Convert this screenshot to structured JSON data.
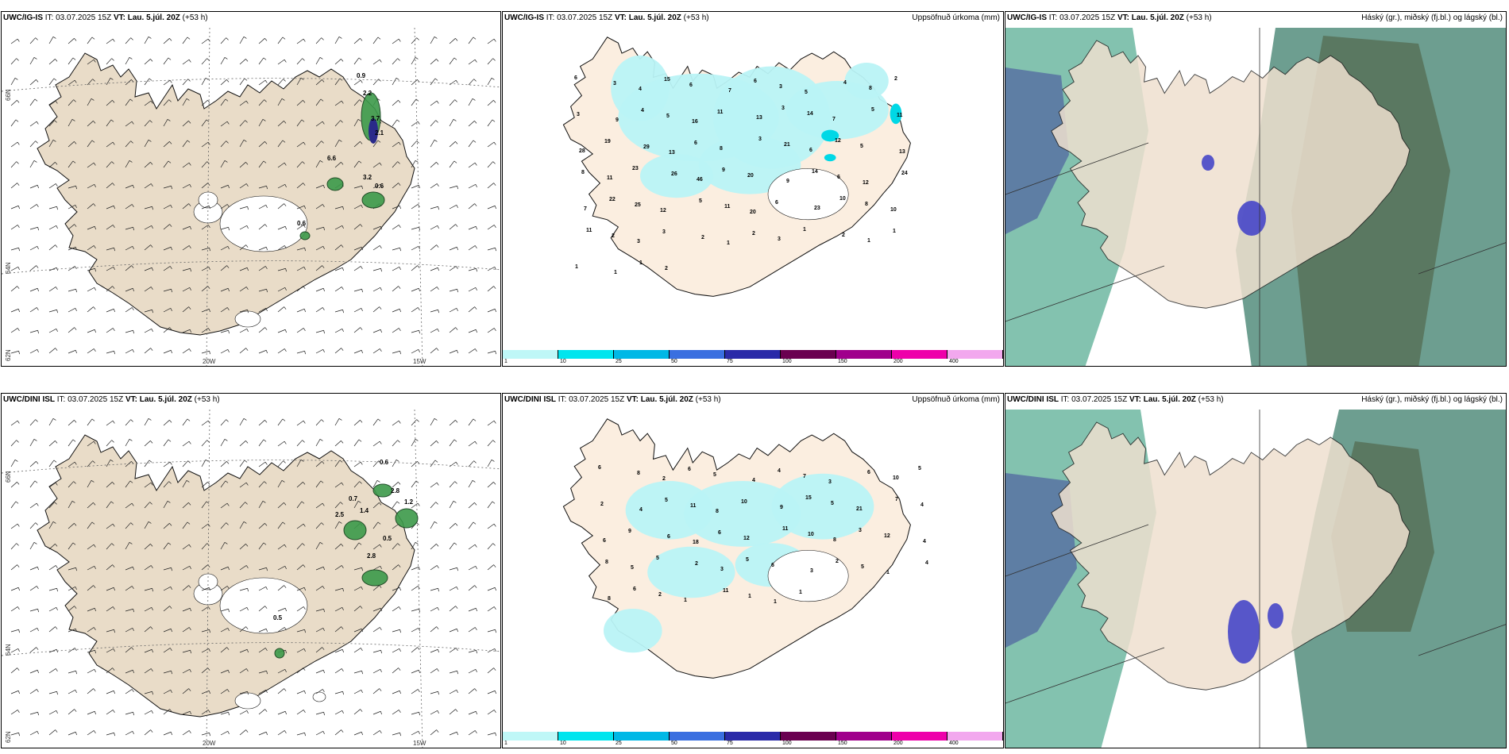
{
  "panels": [
    {
      "model": "UWC/IG-IS",
      "it_label": "IT:",
      "it_value": "03.07.2025 15Z",
      "vt_label": "VT:",
      "vt_value": "Lau. 5.júl. 20Z",
      "lead": "(+53 h)",
      "right_title": "",
      "type": "wind"
    },
    {
      "model": "UWC/IG-IS",
      "it_label": "IT:",
      "it_value": "03.07.2025 15Z",
      "vt_label": "VT:",
      "vt_value": "Lau. 5.júl. 20Z",
      "lead": "(+53 h)",
      "right_title": "Uppsöfnuð úrkoma (mm)",
      "type": "precip"
    },
    {
      "model": "UWC/IG-IS",
      "it_label": "IT:",
      "it_value": "03.07.2025 15Z",
      "vt_label": "VT:",
      "vt_value": "Lau. 5.júl. 20Z",
      "lead": "(+53 h)",
      "right_title": "Háský (gr.), miðský (fj.bl.) og lágský (bl.)",
      "type": "cloud"
    },
    {
      "model": "UWC/DINI ISL",
      "it_label": "IT:",
      "it_value": "03.07.2025 15Z",
      "vt_label": "VT:",
      "vt_value": "Lau. 5.júl. 20Z",
      "lead": "(+53 h)",
      "right_title": "",
      "type": "wind"
    },
    {
      "model": "UWC/DINI ISL",
      "it_label": "IT:",
      "it_value": "03.07.2025 15Z",
      "vt_label": "VT:",
      "vt_value": "Lau. 5.júl. 20Z",
      "lead": "(+53 h)",
      "right_title": "Uppsöfnuð úrkoma (mm)",
      "type": "precip"
    },
    {
      "model": "UWC/DINI ISL",
      "it_label": "IT:",
      "it_value": "03.07.2025 15Z",
      "vt_label": "VT:",
      "vt_value": "Lau. 5.júl. 20Z",
      "lead": "(+53 h)",
      "right_title": "Háský (gr.), miðský (fj.bl.) og lágský (bl.)",
      "type": "cloud"
    }
  ],
  "axis": {
    "lon1": "20W",
    "lon2": "15W",
    "lat66": "66N",
    "lat64": "64N",
    "lat62": "62N"
  },
  "colorbar": {
    "ticks": [
      "1",
      "10",
      "25",
      "50",
      "75",
      "100",
      "150",
      "200",
      "400"
    ],
    "colors": [
      "#bff7f7",
      "#00e5ee",
      "#00b8e6",
      "#3a6fe0",
      "#2a2aa8",
      "#6a0050",
      "#a0008c",
      "#ee00aa",
      "#f2a8ee"
    ]
  },
  "wind_maxima": {
    "top": [
      "0.9",
      "2.2",
      "3.7",
      "2.1",
      "6.6",
      "3.2",
      "0.6",
      "0.6"
    ],
    "bottom": [
      "0.6",
      "0.7",
      "1.4",
      "2.5",
      "2.8",
      "1.2",
      "0.5",
      "2.8",
      "0.5"
    ]
  },
  "precip_numbers": {
    "top": [
      "6",
      "3",
      "4",
      "15",
      "6",
      "7",
      "6",
      "3",
      "5",
      "4",
      "8",
      "2",
      "3",
      "9",
      "4",
      "5",
      "16",
      "11",
      "13",
      "3",
      "14",
      "7",
      "5",
      "11",
      "28",
      "19",
      "29",
      "13",
      "6",
      "8",
      "3",
      "21",
      "6",
      "12",
      "5",
      "13",
      "8",
      "11",
      "23",
      "26",
      "46",
      "9",
      "20",
      "9",
      "14",
      "6",
      "12",
      "24",
      "7",
      "22",
      "25",
      "12",
      "5",
      "11",
      "20",
      "6",
      "23",
      "10",
      "8",
      "10",
      "11",
      "2",
      "3",
      "3",
      "2",
      "1",
      "2",
      "3",
      "1",
      "2",
      "1",
      "1",
      "1",
      "1",
      "1",
      "2"
    ],
    "bottom": [
      "6",
      "8",
      "2",
      "6",
      "5",
      "4",
      "4",
      "7",
      "3",
      "6",
      "10",
      "5",
      "2",
      "4",
      "5",
      "11",
      "8",
      "10",
      "9",
      "15",
      "5",
      "21",
      "7",
      "4",
      "6",
      "9",
      "6",
      "18",
      "6",
      "12",
      "11",
      "10",
      "8",
      "3",
      "12",
      "4",
      "8",
      "5",
      "5",
      "2",
      "3",
      "5",
      "6",
      "3",
      "2",
      "5",
      "1",
      "4",
      "8",
      "6",
      "2",
      "1",
      "11",
      "1",
      "1",
      "1"
    ]
  }
}
